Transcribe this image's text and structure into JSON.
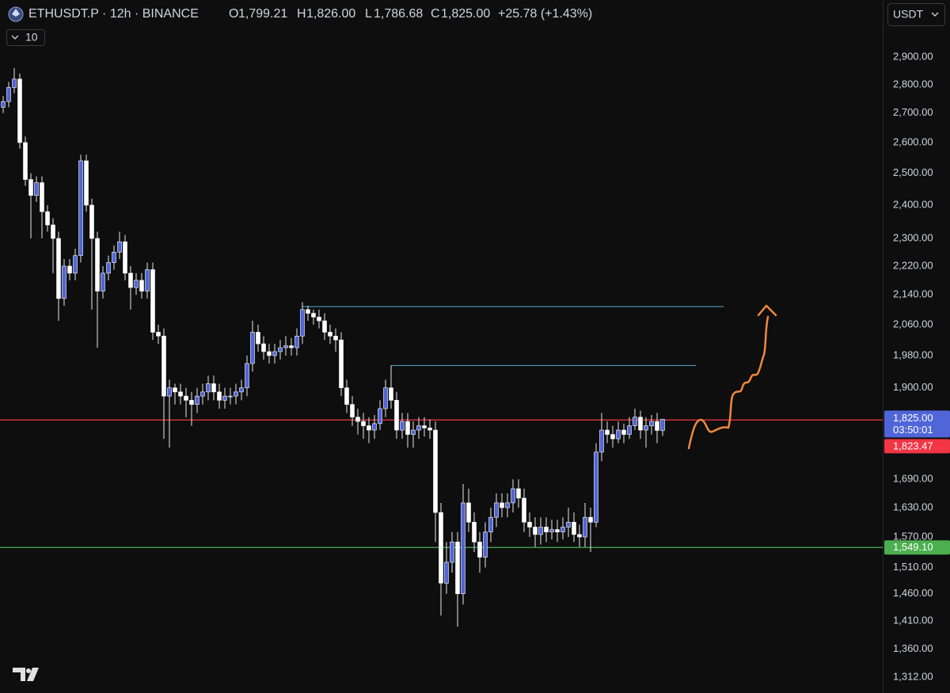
{
  "chart_data": {
    "type": "candlestick",
    "header": {
      "symbol": "ETHUSDT.P · 12h · BINANCE",
      "open_key": "O",
      "open_text": "1,799.21",
      "high_key": "H",
      "high_text": "1,826.00",
      "low_key": "L",
      "low_text": "1,786.68",
      "close_key": "C",
      "close_text": "1,825.00",
      "change_text": "+25.78 (+1.43%)",
      "indicator_count": "10",
      "currency": "USDT"
    },
    "log_scale": true,
    "grid": false,
    "up_color": "#5065d8",
    "down_color": "#ffffff",
    "ylim": [
      1286,
      3120
    ],
    "yticks": [
      {
        "value": 2900,
        "label": "2,900.00"
      },
      {
        "value": 2800,
        "label": "2,800.00"
      },
      {
        "value": 2700,
        "label": "2,700.00"
      },
      {
        "value": 2600,
        "label": "2,600.00"
      },
      {
        "value": 2500,
        "label": "2,500.00"
      },
      {
        "value": 2400,
        "label": "2,400.00"
      },
      {
        "value": 2300,
        "label": "2,300.00"
      },
      {
        "value": 2220,
        "label": "2,220.00"
      },
      {
        "value": 2140,
        "label": "2,140.00"
      },
      {
        "value": 2060,
        "label": "2,060.00"
      },
      {
        "value": 1980,
        "label": "1,980.00"
      },
      {
        "value": 1900,
        "label": "1,900.00"
      },
      {
        "value": 1690,
        "label": "1,690.00"
      },
      {
        "value": 1630,
        "label": "1,630.00"
      },
      {
        "value": 1570,
        "label": "1,570.00"
      },
      {
        "value": 1510,
        "label": "1,510.00"
      },
      {
        "value": 1460,
        "label": "1,460.00"
      },
      {
        "value": 1410,
        "label": "1,410.00"
      },
      {
        "value": 1360,
        "label": "1,360.00"
      },
      {
        "value": 1312,
        "label": "1,312.00"
      }
    ],
    "open": [
      2720,
      2740,
      2790,
      2820,
      2600,
      2480,
      2430,
      2470,
      2380,
      2340,
      2300,
      2130,
      2220,
      2200,
      2250,
      2540,
      2400,
      2300,
      2150,
      2200,
      2230,
      2260,
      2290,
      2200,
      2160,
      2180,
      2150,
      2210,
      2040,
      2030,
      1880,
      1900,
      1890,
      1880,
      1870,
      1860,
      1880,
      1890,
      1910,
      1890,
      1870,
      1880,
      1880,
      1890,
      1900,
      1960,
      2040,
      2010,
      1990,
      1980,
      1990,
      2000,
      2005,
      2000,
      2030,
      2100,
      2090,
      2080,
      2070,
      2040,
      2030,
      2020,
      1900,
      1860,
      1830,
      1820,
      1810,
      1800,
      1815,
      1850,
      1900,
      1870,
      1800,
      1820,
      1790,
      1800,
      1810,
      1805,
      1800,
      1620,
      1480,
      1520,
      1560,
      1460,
      1640,
      1600,
      1560,
      1530,
      1580,
      1610,
      1640,
      1630,
      1640,
      1670,
      1650,
      1600,
      1590,
      1575,
      1590,
      1580,
      1585,
      1580,
      1590,
      1600,
      1575,
      1570,
      1610,
      1600,
      1750,
      1800,
      1790,
      1780,
      1800,
      1790,
      1810,
      1830,
      1800,
      1810,
      1820,
      1799.21
    ],
    "high": [
      2760,
      2810,
      2860,
      2840,
      2620,
      2500,
      2490,
      2490,
      2400,
      2360,
      2320,
      2240,
      2240,
      2270,
      2560,
      2560,
      2420,
      2320,
      2220,
      2250,
      2280,
      2320,
      2310,
      2220,
      2200,
      2200,
      2230,
      2230,
      2060,
      2050,
      1920,
      1910,
      1910,
      1900,
      1890,
      1900,
      1910,
      1930,
      1930,
      1910,
      1900,
      1900,
      1910,
      1920,
      1980,
      2070,
      2060,
      2030,
      2010,
      2010,
      2020,
      2030,
      2025,
      2050,
      2120,
      2110,
      2100,
      2100,
      2090,
      2060,
      2050,
      2040,
      1920,
      1880,
      1850,
      1840,
      1830,
      1835,
      1870,
      1920,
      1955,
      1890,
      1840,
      1840,
      1820,
      1830,
      1830,
      1825,
      1820,
      1640,
      1560,
      1580,
      1580,
      1680,
      1670,
      1620,
      1580,
      1600,
      1630,
      1660,
      1660,
      1660,
      1690,
      1690,
      1670,
      1620,
      1610,
      1610,
      1610,
      1605,
      1605,
      1610,
      1630,
      1620,
      1595,
      1640,
      1630,
      1770,
      1840,
      1820,
      1810,
      1820,
      1815,
      1830,
      1850,
      1845,
      1830,
      1835,
      1840,
      1826
    ],
    "low": [
      2700,
      2720,
      2770,
      2580,
      2460,
      2300,
      2410,
      2300,
      2320,
      2200,
      2070,
      2110,
      2180,
      2180,
      2230,
      2380,
      2100,
      2000,
      2130,
      2180,
      2210,
      2240,
      2180,
      2100,
      2140,
      2130,
      2130,
      2020,
      2010,
      1780,
      1760,
      1860,
      1860,
      1830,
      1810,
      1840,
      1860,
      1870,
      1870,
      1850,
      1850,
      1860,
      1860,
      1870,
      1880,
      1940,
      1990,
      1970,
      1960,
      1960,
      1970,
      1980,
      1980,
      1980,
      2010,
      2070,
      2060,
      2050,
      2020,
      2010,
      1990,
      1880,
      1840,
      1810,
      1790,
      1780,
      1770,
      1780,
      1800,
      1830,
      1850,
      1780,
      1780,
      1760,
      1760,
      1780,
      1785,
      1780,
      1560,
      1420,
      1460,
      1500,
      1400,
      1440,
      1580,
      1540,
      1500,
      1510,
      1560,
      1590,
      1610,
      1610,
      1620,
      1630,
      1580,
      1570,
      1550,
      1555,
      1560,
      1565,
      1560,
      1565,
      1570,
      1560,
      1550,
      1550,
      1540,
      1590,
      1730,
      1770,
      1760,
      1770,
      1770,
      1780,
      1800,
      1780,
      1760,
      1790,
      1770,
      1786.68
    ],
    "close": [
      2740,
      2790,
      2820,
      2600,
      2480,
      2430,
      2470,
      2380,
      2340,
      2300,
      2130,
      2220,
      2200,
      2250,
      2540,
      2400,
      2300,
      2150,
      2200,
      2230,
      2260,
      2290,
      2200,
      2160,
      2180,
      2150,
      2210,
      2040,
      2030,
      1880,
      1900,
      1890,
      1880,
      1870,
      1860,
      1880,
      1890,
      1910,
      1890,
      1870,
      1880,
      1880,
      1890,
      1900,
      1960,
      2040,
      2010,
      1990,
      1980,
      1990,
      2000,
      2005,
      2000,
      2030,
      2100,
      2090,
      2080,
      2070,
      2040,
      2030,
      2020,
      1900,
      1860,
      1830,
      1820,
      1810,
      1800,
      1815,
      1850,
      1900,
      1870,
      1800,
      1820,
      1790,
      1800,
      1810,
      1805,
      1800,
      1620,
      1480,
      1520,
      1560,
      1460,
      1640,
      1600,
      1560,
      1530,
      1580,
      1610,
      1640,
      1630,
      1640,
      1670,
      1650,
      1600,
      1590,
      1575,
      1590,
      1580,
      1585,
      1580,
      1590,
      1600,
      1575,
      1570,
      1610,
      1600,
      1750,
      1800,
      1790,
      1780,
      1800,
      1790,
      1810,
      1830,
      1800,
      1810,
      1820,
      1799.21,
      1825
    ],
    "last_price": {
      "value": 1825,
      "label": "1,825.00"
    },
    "countdown": "03:50:01",
    "levels": [
      {
        "value": 1823.47,
        "label": "1,823.47",
        "color": "#f23645"
      },
      {
        "value": 1549.1,
        "label": "1,549.10",
        "color": "#4caf50"
      }
    ],
    "rays": [
      {
        "value": 2108,
        "start": 54,
        "end": 130,
        "color": "#4a8fa8"
      },
      {
        "value": 1955,
        "start": 70,
        "end": 125,
        "color": "#4a8fa8"
      }
    ]
  }
}
